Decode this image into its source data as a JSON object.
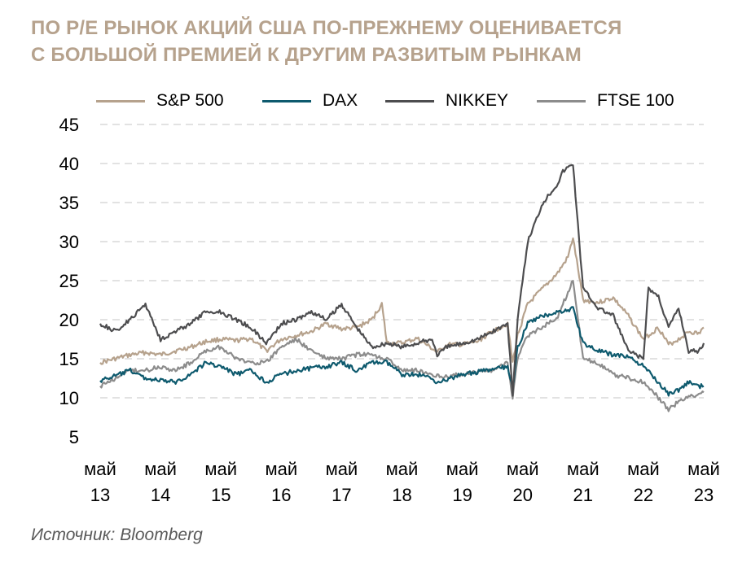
{
  "title_lines": [
    "ПО Р/Е РЫНОК АКЦИЙ США ПО-ПРЕЖНЕМУ ОЦЕНИВАЕТСЯ",
    "С БОЛЬШОЙ ПРЕМИЕЙ К ДРУГИМ РАЗВИТЫМ РЫНКАМ"
  ],
  "source": "Источник: Bloomberg",
  "colors": {
    "title": "#B6A28D",
    "grid": "#D9D9D9",
    "axis_text": "#000000",
    "source_text": "#595959"
  },
  "chart_data": {
    "type": "line",
    "title": "ПО Р/Е РЫНОК АКЦИЙ США ПО-ПРЕЖНЕМУ ОЦЕНИВАЕТСЯ С БОЛЬШОЙ ПРЕМИЕЙ К ДРУГИМ РАЗВИТЫМ РЫНКАМ",
    "xlabel": "",
    "ylabel": "",
    "x_range": [
      "2013-05",
      "2023-05"
    ],
    "ylim": [
      5,
      45
    ],
    "y_ticks": [
      5,
      10,
      15,
      20,
      25,
      30,
      35,
      40,
      45
    ],
    "x_ticks": [
      {
        "date": "2013-05",
        "month": "май",
        "year": "13"
      },
      {
        "date": "2014-05",
        "month": "май",
        "year": "14"
      },
      {
        "date": "2015-05",
        "month": "май",
        "year": "15"
      },
      {
        "date": "2016-05",
        "month": "май",
        "year": "16"
      },
      {
        "date": "2017-05",
        "month": "май",
        "year": "17"
      },
      {
        "date": "2018-05",
        "month": "май",
        "year": "18"
      },
      {
        "date": "2019-05",
        "month": "май",
        "year": "19"
      },
      {
        "date": "2020-05",
        "month": "май",
        "year": "20"
      },
      {
        "date": "2021-05",
        "month": "май",
        "year": "21"
      },
      {
        "date": "2022-05",
        "month": "май",
        "year": "22"
      },
      {
        "date": "2023-05",
        "month": "май",
        "year": "23"
      }
    ],
    "grid": "horizontal dashed",
    "legend_position": "top",
    "series": [
      {
        "name": "S&P 500",
        "color": "#B6A28D",
        "x": [
          "2013-05",
          "2013-08",
          "2013-11",
          "2014-02",
          "2014-05",
          "2014-08",
          "2014-11",
          "2015-02",
          "2015-05",
          "2015-08",
          "2015-11",
          "2016-02",
          "2016-05",
          "2016-08",
          "2016-11",
          "2017-02",
          "2017-05",
          "2017-08",
          "2017-11",
          "2018-01",
          "2018-02",
          "2018-05",
          "2018-08",
          "2018-11",
          "2018-12",
          "2019-02",
          "2019-05",
          "2019-08",
          "2019-11",
          "2020-02",
          "2020-03",
          "2020-04",
          "2020-06",
          "2020-09",
          "2020-12",
          "2021-02",
          "2021-03",
          "2021-05",
          "2021-08",
          "2021-11",
          "2022-02",
          "2022-05",
          "2022-08",
          "2022-10",
          "2022-12",
          "2023-02",
          "2023-04",
          "2023-05"
        ],
        "y": [
          14.5,
          15.0,
          15.5,
          15.8,
          15.5,
          16.0,
          16.5,
          17.2,
          17.5,
          17.3,
          17.6,
          16.0,
          17.5,
          18.0,
          18.5,
          19.5,
          18.8,
          19.0,
          20.0,
          22.0,
          17.0,
          17.0,
          17.6,
          16.3,
          15.8,
          16.8,
          16.8,
          17.2,
          18.5,
          19.5,
          14.5,
          18.0,
          22.0,
          24.0,
          26.0,
          28.0,
          30.5,
          22.5,
          22.2,
          22.8,
          20.5,
          17.5,
          19.0,
          16.8,
          17.5,
          18.5,
          18.2,
          19.0
        ]
      },
      {
        "name": "DAX",
        "color": "#0E5A6E",
        "x": [
          "2013-05",
          "2013-08",
          "2013-11",
          "2014-02",
          "2014-05",
          "2014-08",
          "2014-11",
          "2015-02",
          "2015-05",
          "2015-08",
          "2015-11",
          "2016-02",
          "2016-05",
          "2016-08",
          "2016-11",
          "2017-02",
          "2017-05",
          "2017-08",
          "2017-11",
          "2018-02",
          "2018-05",
          "2018-08",
          "2018-11",
          "2018-12",
          "2019-02",
          "2019-05",
          "2019-08",
          "2019-11",
          "2020-02",
          "2020-03",
          "2020-04",
          "2020-06",
          "2020-09",
          "2020-12",
          "2021-02",
          "2021-03",
          "2021-05",
          "2021-08",
          "2021-11",
          "2022-02",
          "2022-05",
          "2022-08",
          "2022-10",
          "2022-12",
          "2023-02",
          "2023-04",
          "2023-05"
        ],
        "y": [
          12.2,
          12.8,
          13.5,
          12.5,
          12.2,
          12.0,
          13.0,
          14.5,
          14.0,
          13.0,
          13.5,
          12.0,
          13.0,
          13.5,
          13.8,
          14.0,
          14.5,
          13.5,
          14.5,
          14.5,
          13.0,
          13.0,
          12.5,
          12.0,
          12.3,
          13.0,
          13.3,
          13.6,
          14.0,
          11.0,
          16.5,
          19.5,
          20.5,
          21.0,
          21.2,
          21.5,
          17.0,
          16.0,
          15.5,
          15.3,
          14.0,
          12.0,
          10.5,
          11.0,
          12.0,
          11.5,
          11.5
        ]
      },
      {
        "name": "NIKKEY",
        "color": "#4D4D4F",
        "x": [
          "2013-05",
          "2013-08",
          "2013-11",
          "2014-02",
          "2014-05",
          "2014-08",
          "2014-11",
          "2015-02",
          "2015-05",
          "2015-08",
          "2015-11",
          "2016-02",
          "2016-05",
          "2016-08",
          "2016-11",
          "2017-02",
          "2017-05",
          "2017-08",
          "2017-11",
          "2018-02",
          "2018-05",
          "2018-08",
          "2018-11",
          "2018-12",
          "2019-02",
          "2019-05",
          "2019-08",
          "2019-11",
          "2020-02",
          "2020-03",
          "2020-04",
          "2020-06",
          "2020-09",
          "2020-12",
          "2021-01",
          "2021-03",
          "2021-05",
          "2021-08",
          "2021-11",
          "2022-02",
          "2022-05",
          "2022-06",
          "2022-08",
          "2022-10",
          "2022-12",
          "2023-02",
          "2023-04",
          "2023-05"
        ],
        "y": [
          19.5,
          18.5,
          20.0,
          22.0,
          17.5,
          18.5,
          19.5,
          21.0,
          21.0,
          20.0,
          19.0,
          17.0,
          19.5,
          20.0,
          21.0,
          20.0,
          22.0,
          19.0,
          16.5,
          17.0,
          16.5,
          17.0,
          17.5,
          15.5,
          16.5,
          17.0,
          17.5,
          18.5,
          19.5,
          10.5,
          20.0,
          30.0,
          35.0,
          37.5,
          39.0,
          40.0,
          24.0,
          21.5,
          20.5,
          16.0,
          15.0,
          24.0,
          23.0,
          19.0,
          21.5,
          16.0,
          16.0,
          17.0
        ]
      },
      {
        "name": "FTSE 100",
        "color": "#8C8C8C",
        "x": [
          "2013-05",
          "2013-08",
          "2013-11",
          "2014-02",
          "2014-05",
          "2014-08",
          "2014-11",
          "2015-02",
          "2015-05",
          "2015-08",
          "2015-11",
          "2016-02",
          "2016-05",
          "2016-08",
          "2016-11",
          "2017-02",
          "2017-05",
          "2017-08",
          "2017-11",
          "2018-02",
          "2018-05",
          "2018-08",
          "2018-11",
          "2018-12",
          "2019-02",
          "2019-05",
          "2019-08",
          "2019-11",
          "2020-02",
          "2020-03",
          "2020-04",
          "2020-06",
          "2020-09",
          "2020-12",
          "2021-02",
          "2021-03",
          "2021-05",
          "2021-08",
          "2021-11",
          "2022-02",
          "2022-05",
          "2022-08",
          "2022-10",
          "2022-12",
          "2023-02",
          "2023-04",
          "2023-05"
        ],
        "y": [
          11.5,
          12.5,
          13.5,
          13.5,
          14.0,
          13.5,
          14.5,
          16.0,
          16.5,
          15.0,
          14.5,
          14.5,
          16.5,
          17.5,
          16.0,
          15.0,
          15.0,
          15.5,
          15.5,
          15.0,
          13.5,
          13.5,
          13.0,
          12.8,
          12.8,
          13.0,
          13.3,
          13.6,
          14.5,
          10.0,
          15.0,
          18.0,
          19.0,
          20.5,
          23.5,
          25.0,
          15.0,
          14.5,
          13.0,
          12.5,
          12.0,
          10.0,
          8.5,
          9.5,
          10.0,
          10.5,
          10.7
        ]
      }
    ]
  }
}
